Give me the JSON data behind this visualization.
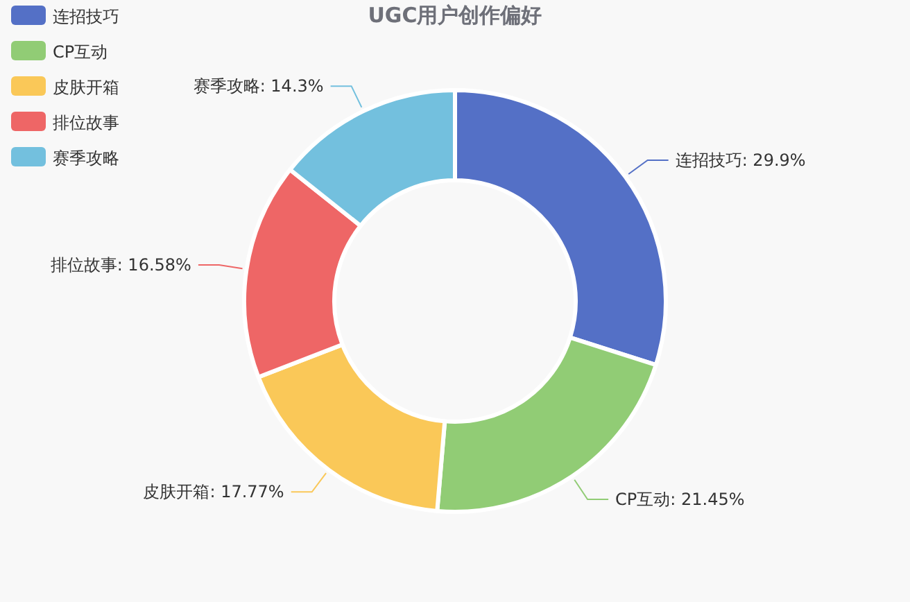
{
  "chart_data": {
    "type": "donut",
    "title": "UGC用户创作偏好",
    "categories": [
      "连招技巧",
      "CP互动",
      "皮肤开箱",
      "排位故事",
      "赛季攻略"
    ],
    "values": [
      29.9,
      21.45,
      17.77,
      16.58,
      14.3
    ],
    "value_labels": [
      ": 29.9%",
      ": 21.45%",
      ": 17.77%",
      ": 16.58%",
      ": 14.3%"
    ],
    "colors": [
      "#5470c6",
      "#91cc75",
      "#fac858",
      "#ee6666",
      "#73c0de"
    ],
    "legend": "top left"
  }
}
